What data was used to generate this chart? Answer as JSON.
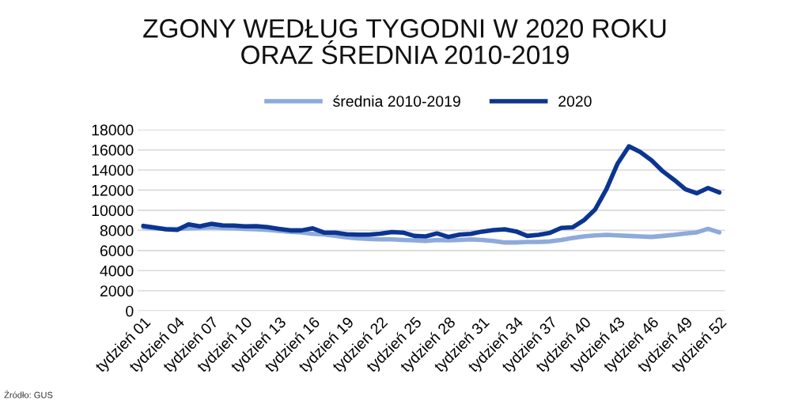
{
  "chart_data": {
    "type": "line",
    "title": "ZGONY WEDŁUG TYGODNI W 2020 ROKU\nORAZ ŚREDNIA 2010-2019",
    "categories": [
      "tydzień 01",
      null,
      null,
      "tydzień 04",
      null,
      null,
      "tydzień 07",
      null,
      null,
      "tydzień 10",
      null,
      null,
      "tydzień 13",
      null,
      null,
      "tydzień 16",
      null,
      null,
      "tydzień 19",
      null,
      null,
      "tydzień 22",
      null,
      null,
      "tydzień 25",
      null,
      null,
      "tydzień 28",
      null,
      null,
      "tydzień 31",
      null,
      null,
      "tydzień 34",
      null,
      null,
      "tydzień 37",
      null,
      null,
      "tydzień 40",
      null,
      null,
      "tydzień 43",
      null,
      null,
      "tydzień 46",
      null,
      null,
      "tydzień 49",
      null,
      null,
      "tydzień 52"
    ],
    "series": [
      {
        "name": "średnia 2010-2019",
        "color": "#8eaadb",
        "values": [
          8300,
          8200,
          8150,
          8150,
          8200,
          8250,
          8300,
          8250,
          8200,
          8150,
          8100,
          8050,
          7950,
          7850,
          7800,
          7650,
          7600,
          7450,
          7300,
          7200,
          7150,
          7100,
          7100,
          7050,
          7000,
          6950,
          7050,
          7000,
          7050,
          7100,
          7050,
          6950,
          6800,
          6800,
          6850,
          6850,
          6900,
          7050,
          7250,
          7400,
          7500,
          7550,
          7500,
          7450,
          7400,
          7350,
          7450,
          7550,
          7700,
          7800,
          8150,
          7800
        ]
      },
      {
        "name": "2020",
        "color": "#0b3590",
        "values": [
          8450,
          8280,
          8100,
          8050,
          8600,
          8400,
          8650,
          8500,
          8480,
          8400,
          8420,
          8320,
          8150,
          8000,
          8000,
          8200,
          7780,
          7780,
          7620,
          7570,
          7570,
          7670,
          7830,
          7780,
          7450,
          7400,
          7700,
          7350,
          7570,
          7650,
          7880,
          8030,
          8100,
          7900,
          7450,
          7550,
          7750,
          8250,
          8300,
          9000,
          10070,
          12080,
          14650,
          16350,
          15780,
          14970,
          13870,
          13020,
          12080,
          11690,
          12210,
          11770
        ]
      }
    ],
    "ylim": [
      0,
      18000
    ],
    "yticks": [
      0,
      2000,
      4000,
      6000,
      8000,
      10000,
      12000,
      14000,
      16000,
      18000
    ],
    "grid": "y",
    "legend": "top",
    "marker": "none",
    "line_style": "solid",
    "annotations": [
      "Źródło: GUS"
    ]
  }
}
